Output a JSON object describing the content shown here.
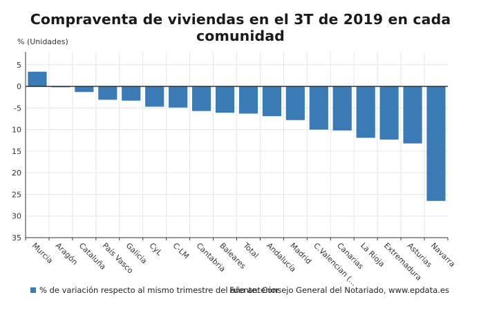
{
  "chart_data": {
    "type": "bar",
    "title": "Compraventa de viviendas en el 3T de 2019 en cada comunidad",
    "unit_label": "% (Unidades)",
    "categories": [
      "Murcia",
      "Aragón",
      "Cataluña",
      "País Vasco",
      "Galicia",
      "CyL",
      "C-LM",
      "Cantabria",
      "Baleares",
      "Total",
      "Andalucía",
      "Madrid",
      "C.Valencian (...",
      "Canarias",
      "La Rioja",
      "Extremadura",
      "Asturias",
      "Navarra"
    ],
    "series": [
      {
        "name": "% de variación respecto al mismo trimestre del año anterior",
        "color": "#3a7ab5",
        "values": [
          3.4,
          -0.2,
          -1.3,
          -3.1,
          -3.3,
          -4.7,
          -4.9,
          -5.7,
          -6.1,
          -6.3,
          -6.9,
          -7.8,
          -10.0,
          -10.2,
          -11.9,
          -12.3,
          -13.2,
          -26.5
        ]
      }
    ],
    "yticks": [
      5,
      0,
      -5,
      -10,
      -15,
      -20,
      -25,
      -30,
      -35
    ],
    "ytick_labels": [
      "5",
      "0",
      "-5",
      "10",
      "15",
      "20",
      "25",
      "30",
      "35"
    ],
    "ylim": [
      -35,
      8
    ],
    "grid": true,
    "legend_position": "bottom-left"
  },
  "source_text": "Fuente: Consejo General del Notariado, www.epdata.es"
}
